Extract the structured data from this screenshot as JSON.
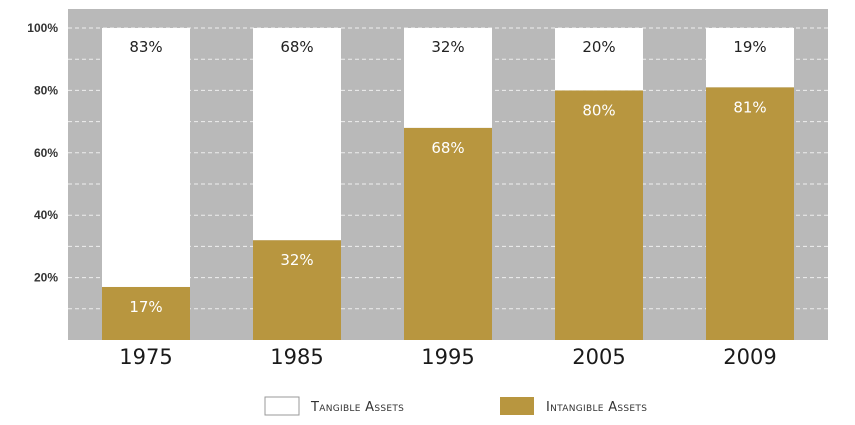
{
  "chart_data": {
    "type": "bar",
    "stacked": true,
    "categories": [
      "1975",
      "1985",
      "1995",
      "2005",
      "2009"
    ],
    "series": [
      {
        "name": "Tangible Assets",
        "color": "#ffffff",
        "values": [
          83,
          68,
          32,
          20,
          19
        ],
        "labels": [
          "83%",
          "68%",
          "32%",
          "20%",
          "19%"
        ]
      },
      {
        "name": "Intangible Assets",
        "color": "#b8963f",
        "values": [
          17,
          32,
          68,
          80,
          81
        ],
        "labels": [
          "17%",
          "32%",
          "68%",
          "80%",
          "81%"
        ]
      }
    ],
    "yticks": [
      {
        "value": 20,
        "label": "20%"
      },
      {
        "value": 40,
        "label": "40%"
      },
      {
        "value": 60,
        "label": "60%"
      },
      {
        "value": 80,
        "label": "80%"
      },
      {
        "value": 100,
        "label": "100%"
      }
    ],
    "ylim": [
      0,
      100
    ],
    "grid": true,
    "legend_position": "bottom",
    "colors": {
      "plot_background": "#b9b9b9",
      "grid": "#eeeeee",
      "intangible": "#b8963f",
      "tangible": "#ffffff",
      "label_on_white": "#222222",
      "label_on_gold": "#ffffff"
    }
  }
}
